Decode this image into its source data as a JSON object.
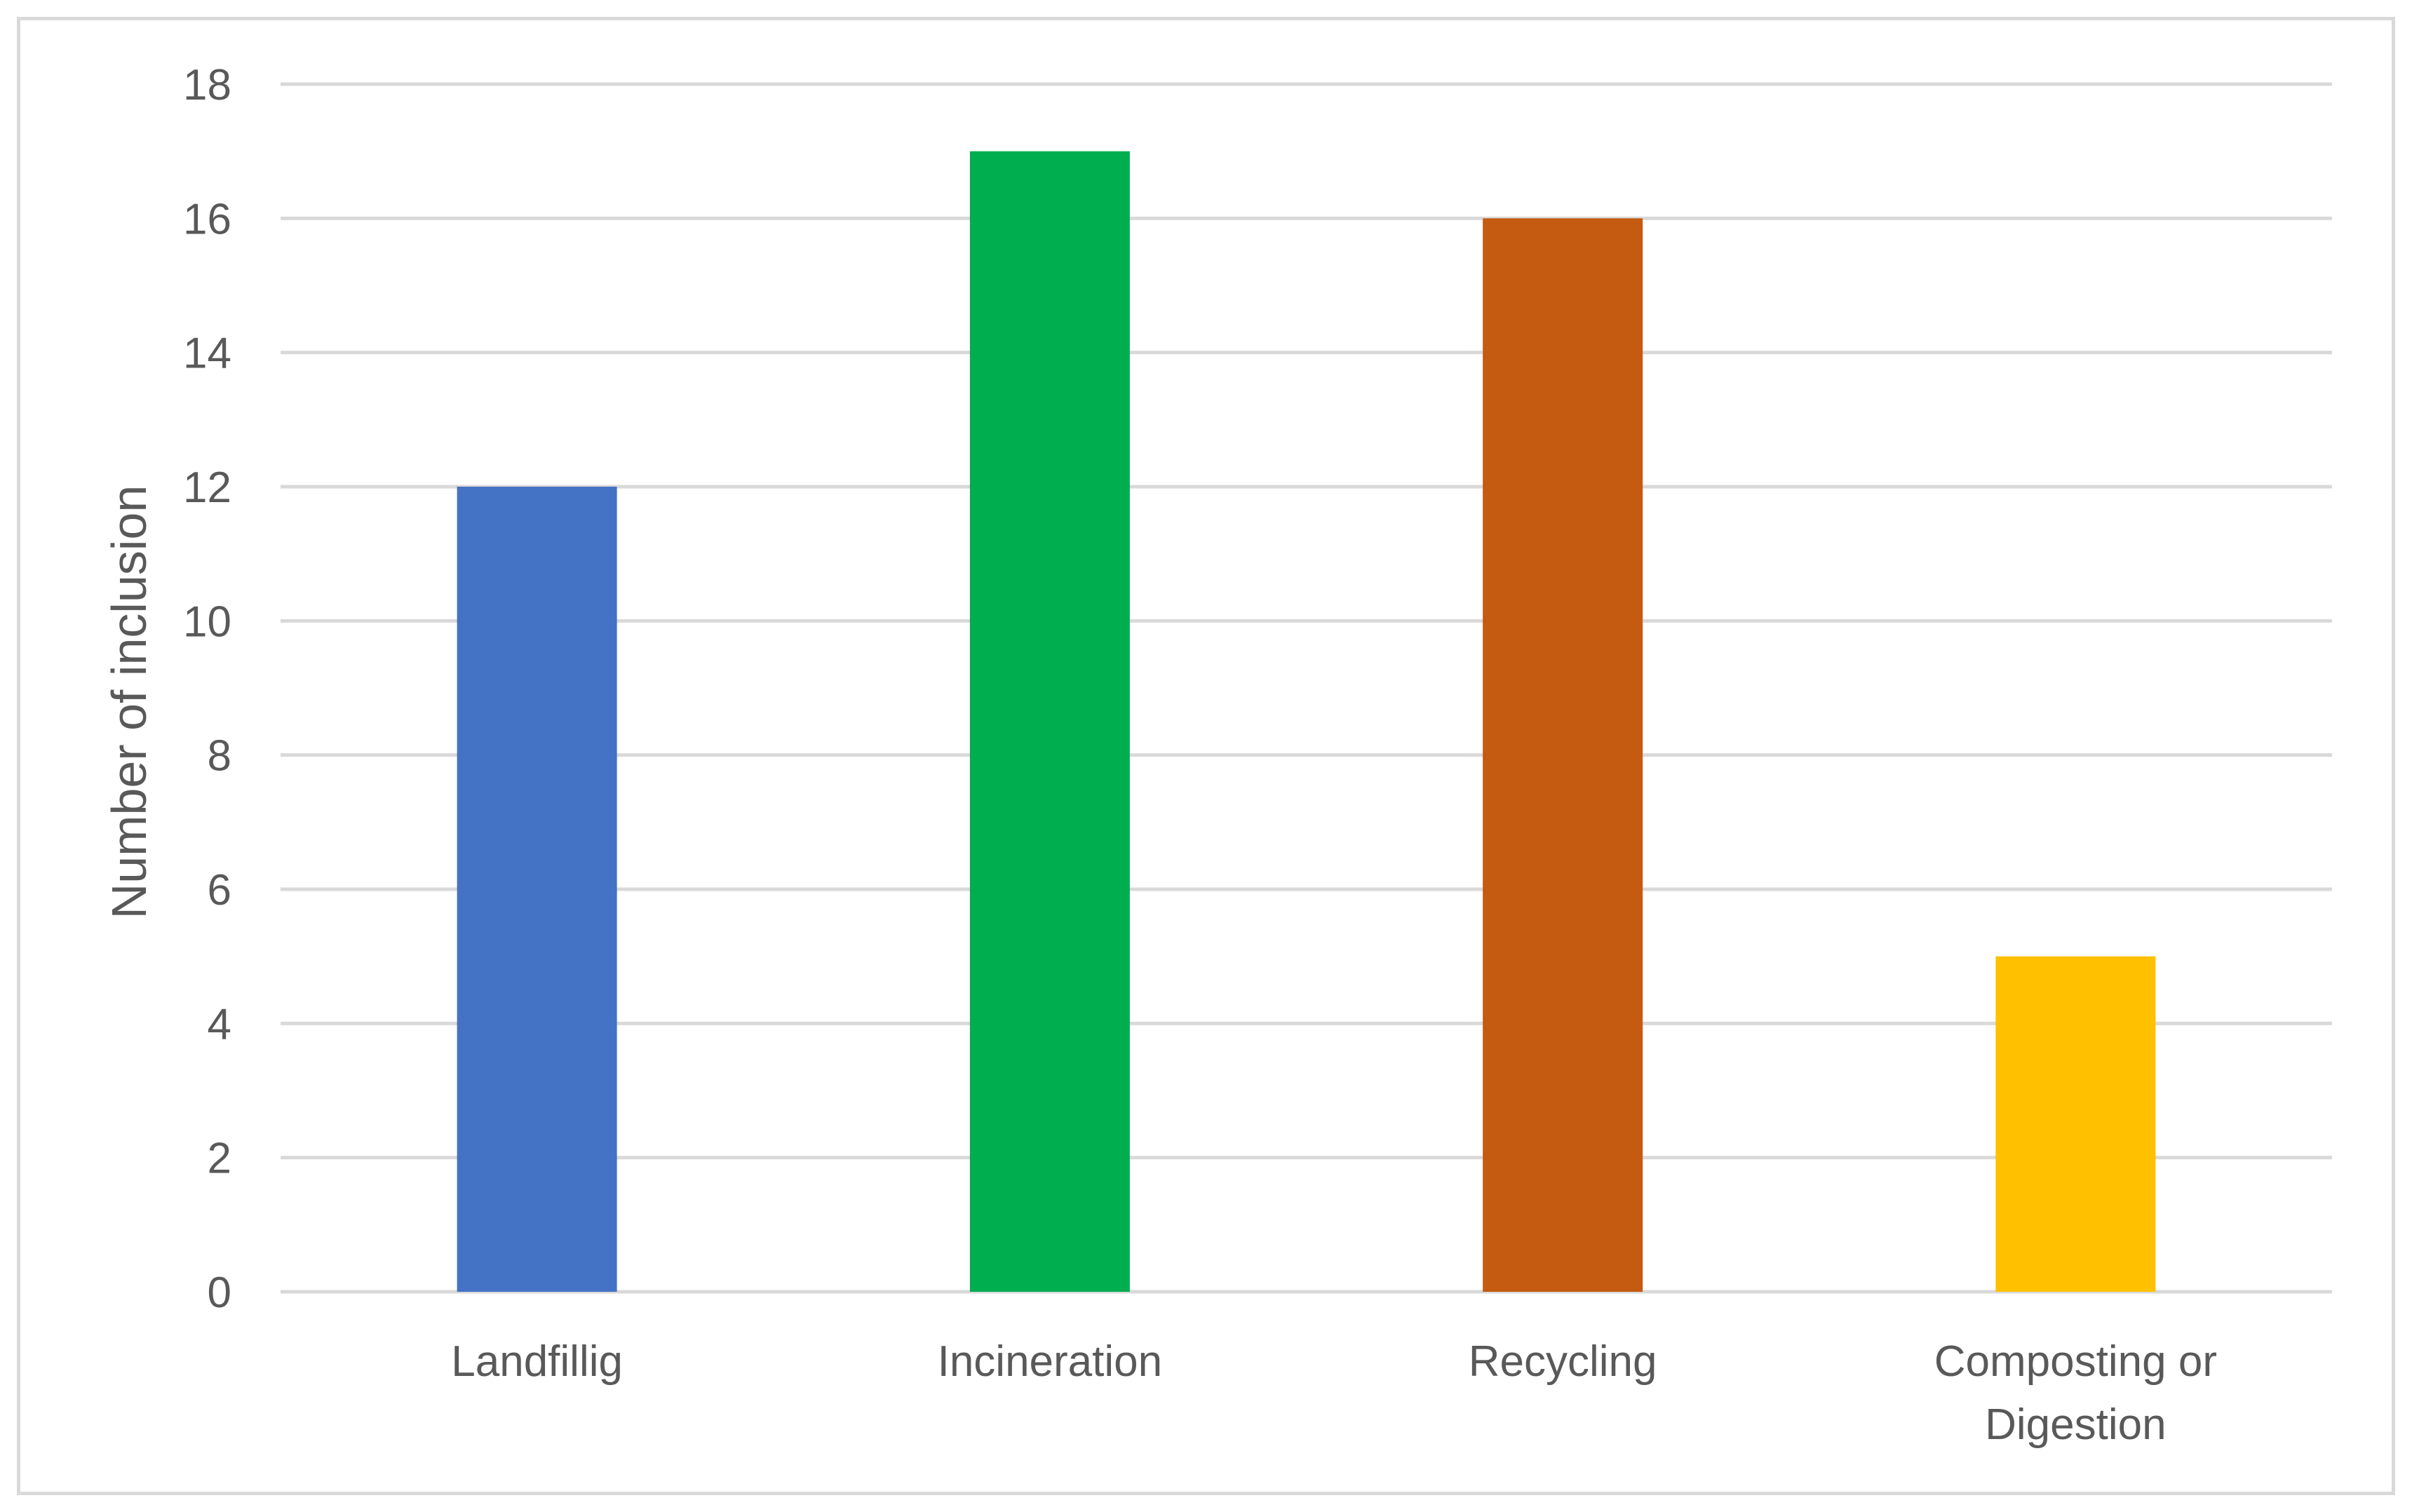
{
  "chart_data": {
    "type": "bar",
    "title": "",
    "xlabel": "",
    "ylabel": "Number of inclusion",
    "categories": [
      [
        "Landfillig"
      ],
      [
        "Incineration"
      ],
      [
        "Recycling"
      ],
      [
        "Composting or",
        "Digestion"
      ]
    ],
    "values": [
      12,
      17,
      16,
      5
    ],
    "colors": [
      "#4472c4",
      "#00ad4f",
      "#c55a11",
      "#ffc000"
    ],
    "ylim": [
      0,
      18
    ],
    "ytick_step": 2,
    "yticks": [
      "0",
      "2",
      "4",
      "6",
      "8",
      "10",
      "12",
      "14",
      "16",
      "18"
    ],
    "grid": true,
    "legend": "none"
  }
}
